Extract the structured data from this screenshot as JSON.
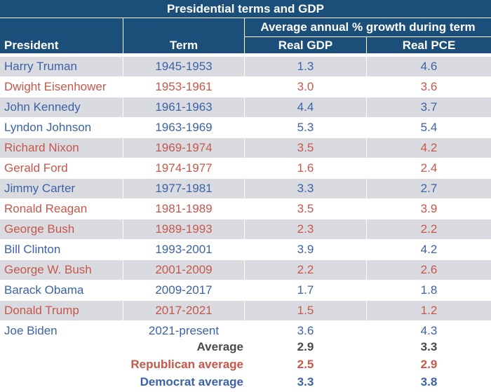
{
  "chart_data": {
    "type": "table",
    "title": "Presidential terms and GDP",
    "header": {
      "president": "President",
      "term": "Term",
      "group": "Average annual % growth during term",
      "gdp": "Real GDP",
      "pce": "Real PCE"
    },
    "colors": {
      "header_bg": "#1b4f7a",
      "democrat": "#3b63a6",
      "republican": "#c8574b",
      "shade": "#d9dbe0"
    },
    "rows": [
      {
        "president": "Harry Truman",
        "term": "1945-1953",
        "gdp": "1.3",
        "pce": "4.6",
        "party": "D"
      },
      {
        "president": "Dwight Eisenhower",
        "term": "1953-1961",
        "gdp": "3.0",
        "pce": "3.6",
        "party": "R"
      },
      {
        "president": "John Kennedy",
        "term": "1961-1963",
        "gdp": "4.4",
        "pce": "3.7",
        "party": "D"
      },
      {
        "president": "Lyndon Johnson",
        "term": "1963-1969",
        "gdp": "5.3",
        "pce": "5.4",
        "party": "D"
      },
      {
        "president": "Richard Nixon",
        "term": "1969-1974",
        "gdp": "3.5",
        "pce": "4.2",
        "party": "R"
      },
      {
        "president": "Gerald Ford",
        "term": "1974-1977",
        "gdp": "1.6",
        "pce": "2.4",
        "party": "R"
      },
      {
        "president": "Jimmy Carter",
        "term": "1977-1981",
        "gdp": "3.3",
        "pce": "2.7",
        "party": "D"
      },
      {
        "president": "Ronald Reagan",
        "term": "1981-1989",
        "gdp": "3.5",
        "pce": "3.9",
        "party": "R"
      },
      {
        "president": "George Bush",
        "term": "1989-1993",
        "gdp": "2.3",
        "pce": "2.2",
        "party": "R"
      },
      {
        "president": "Bill Clinton",
        "term": "1993-2001",
        "gdp": "3.9",
        "pce": "4.2",
        "party": "D"
      },
      {
        "president": "George W. Bush",
        "term": "2001-2009",
        "gdp": "2.2",
        "pce": "2.6",
        "party": "R"
      },
      {
        "president": "Barack Obama",
        "term": "2009-2017",
        "gdp": "1.7",
        "pce": "1.8",
        "party": "D"
      },
      {
        "president": "Donald Trump",
        "term": "2017-2021",
        "gdp": "1.5",
        "pce": "1.2",
        "party": "R"
      },
      {
        "president": "Joe Biden",
        "term": "2021-present",
        "gdp": "3.6",
        "pce": "4.3",
        "party": "D"
      }
    ],
    "summary": [
      {
        "label": "Average",
        "gdp": "2.9",
        "pce": "3.3",
        "kind": "avg"
      },
      {
        "label": "Republican average",
        "gdp": "2.5",
        "pce": "2.9",
        "kind": "rep"
      },
      {
        "label": "Democrat average",
        "gdp": "3.3",
        "pce": "3.8",
        "kind": "dem"
      }
    ]
  }
}
